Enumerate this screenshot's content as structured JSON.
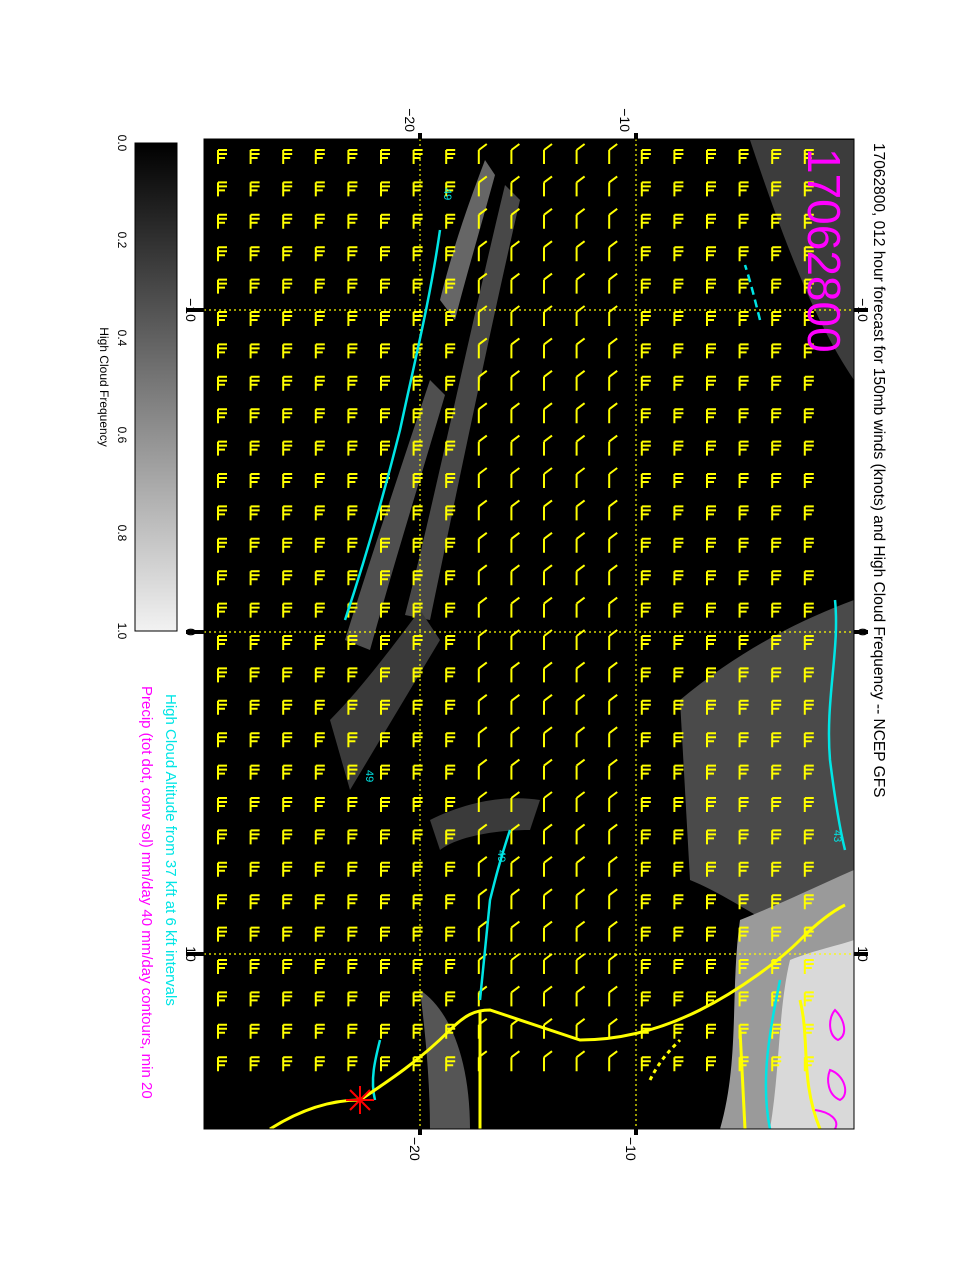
{
  "title": "17062800, 012 hour forecast for 150mb winds (knots) and High Cloud Frequency -- NCEP GFS",
  "stamp": "17062800",
  "note_cloud_altitude": "High Cloud Altitude from 37 kft at 6 kft intervals",
  "note_precip": "Precip (tot dot, conv sol) mm/day 40 mm/day contours, min 20",
  "colorbar": {
    "label": "High Cloud Frequency",
    "ticks": [
      "0.0",
      "0.2",
      "0.4",
      "0.6",
      "0.8",
      "1.0"
    ]
  },
  "axis_labels": {
    "top_a": "−20",
    "top_b": "−10",
    "side_a": "−10",
    "side_b": "0",
    "side_c": "10",
    "bottom_a": "−20",
    "bottom_b": "−10"
  },
  "contour_labels": [
    "49",
    "49",
    "49",
    "43"
  ],
  "colors": {
    "background": "#000000",
    "wind_barbs": "#ffff00",
    "contours": "#00e5e5",
    "stamp": "#ff00ff",
    "precip": "#ff00ff",
    "coast": "#ffff00",
    "marker": "#ff0000"
  }
}
